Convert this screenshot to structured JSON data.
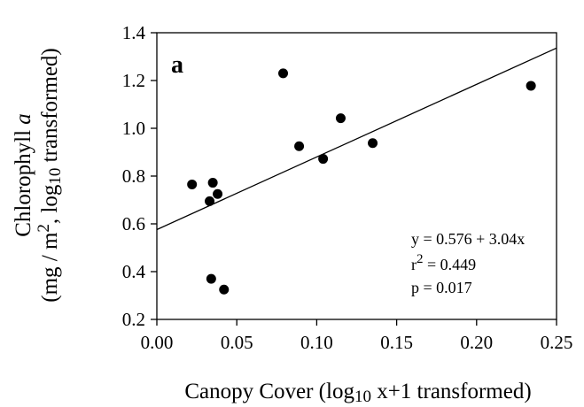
{
  "chart_data": {
    "type": "scatter",
    "panel_label": "a",
    "xlabel": {
      "main": "Canopy Cover (log",
      "sub": "10",
      "rest": " x+1 transformed)"
    },
    "ylabel": {
      "line1_main": "Chlorophyll ",
      "line1_italic": "a",
      "line2_a": "(mg / m",
      "line2_sup": "2",
      "line2_b": ", log",
      "line2_sub": "10",
      "line2_c": " transformed)"
    },
    "xlim": [
      0.0,
      0.25
    ],
    "ylim": [
      0.2,
      1.4
    ],
    "xticks": [
      "0.00",
      "0.05",
      "0.10",
      "0.15",
      "0.20",
      "0.25"
    ],
    "yticks": [
      "0.2",
      "0.4",
      "0.6",
      "0.8",
      "1.0",
      "1.2",
      "1.4"
    ],
    "points": [
      {
        "x": 0.022,
        "y": 0.765
      },
      {
        "x": 0.033,
        "y": 0.695
      },
      {
        "x": 0.034,
        "y": 0.37
      },
      {
        "x": 0.035,
        "y": 0.772
      },
      {
        "x": 0.038,
        "y": 0.725
      },
      {
        "x": 0.042,
        "y": 0.325
      },
      {
        "x": 0.079,
        "y": 1.23
      },
      {
        "x": 0.089,
        "y": 0.925
      },
      {
        "x": 0.104,
        "y": 0.872
      },
      {
        "x": 0.115,
        "y": 1.042
      },
      {
        "x": 0.135,
        "y": 0.938
      },
      {
        "x": 0.234,
        "y": 1.178
      }
    ],
    "regression": {
      "intercept": 0.576,
      "slope": 3.04
    },
    "stats": {
      "equation": "y = 0.576 + 3.04x",
      "r2_r": "r",
      "r2_sup": "2",
      "r2_rest": " = 0.449",
      "p": "p = 0.017"
    },
    "colors": {
      "points": "#000000",
      "line": "#000000",
      "axes": "#000000"
    }
  }
}
